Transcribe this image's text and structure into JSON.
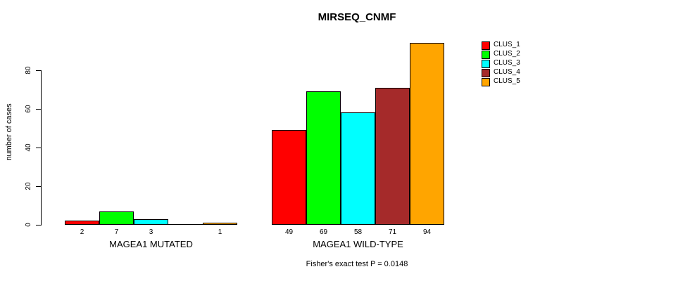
{
  "chart_data": {
    "type": "bar",
    "title": "MIRSEQ_CNMF",
    "ylabel": "number of cases",
    "xlabel": "",
    "ylim": [
      0,
      94
    ],
    "yticks": [
      0,
      20,
      40,
      60,
      80
    ],
    "grid": false,
    "legend_position": "top-right",
    "categories": [
      "MAGEA1 MUTATED",
      "MAGEA1 WILD-TYPE"
    ],
    "series": [
      {
        "name": "CLUS_1",
        "color": "#FF0000",
        "values": [
          2,
          49
        ]
      },
      {
        "name": "CLUS_2",
        "color": "#00FF00",
        "values": [
          7,
          69
        ]
      },
      {
        "name": "CLUS_3",
        "color": "#00FFFF",
        "values": [
          3,
          58
        ]
      },
      {
        "name": "CLUS_4",
        "color": "#A52A2A",
        "values": [
          0,
          71
        ]
      },
      {
        "name": "CLUS_5",
        "color": "#FFA500",
        "values": [
          1,
          94
        ]
      }
    ],
    "bar_value_labels": [
      [
        "2",
        "7",
        "3",
        "",
        "1"
      ],
      [
        "49",
        "69",
        "58",
        "71",
        "94"
      ]
    ],
    "annotation": "Fisher's exact test P = 0.0148"
  }
}
